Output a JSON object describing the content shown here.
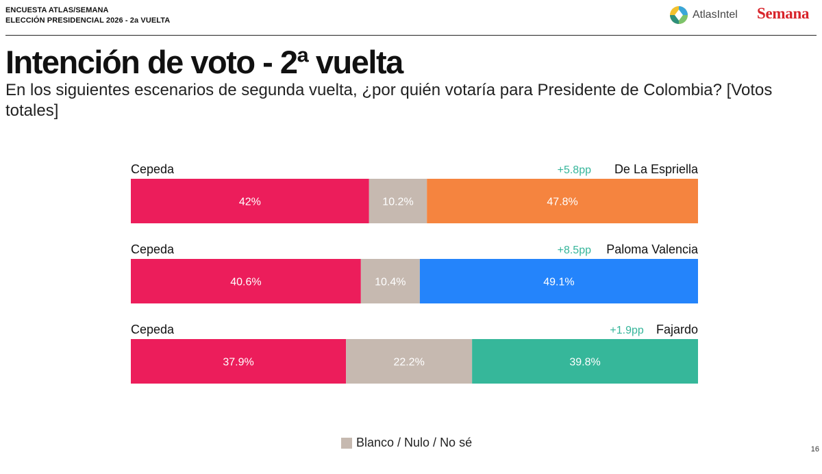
{
  "header": {
    "survey_line1": "ENCUESTA ATLAS/SEMANA",
    "survey_line2": "ELECCIÓN PRESIDENCIAL 2026 - 2a VUELTA",
    "brand_atlas": "AtlasIntel",
    "brand_semana": "Semana"
  },
  "title": "Intención de voto - 2ª vuelta",
  "subtitle": "En los siguientes escenarios de segunda vuelta, ¿por quién votaría para Presidente de Colombia? [Votos totales]",
  "legend": {
    "label": "Blanco / Nulo / No sé",
    "color": "#c6b9b0"
  },
  "page_number": "16",
  "colors": {
    "left_candidate": "#ec1d5b",
    "blank": "#c6b9b0",
    "margin_text": "#35b59a",
    "label_text": "#111111",
    "value_text": "#ffffff"
  },
  "chart_data": {
    "type": "bar",
    "orientation": "horizontal-stacked-100",
    "xlim": [
      0,
      100
    ],
    "unit": "%",
    "categories": [
      "Cepeda vs De La Espriella",
      "Cepeda vs Paloma Valencia",
      "Cepeda vs Fajardo"
    ],
    "scenarios": [
      {
        "left_name": "Cepeda",
        "left_value": 42,
        "left_label": "42%",
        "blank_value": 10.2,
        "blank_label": "10.2%",
        "right_name": "De La Espriella",
        "right_value": 47.8,
        "right_label": "47.8%",
        "right_color": "#f5843f",
        "margin_label": "+5.8pp"
      },
      {
        "left_name": "Cepeda",
        "left_value": 40.6,
        "left_label": "40.6%",
        "blank_value": 10.4,
        "blank_label": "10.4%",
        "right_name": "Paloma Valencia",
        "right_value": 49.1,
        "right_label": "49.1%",
        "right_color": "#2484fb",
        "margin_label": "+8.5pp"
      },
      {
        "left_name": "Cepeda",
        "left_value": 37.9,
        "left_label": "37.9%",
        "blank_value": 22.2,
        "blank_label": "22.2%",
        "right_name": "Fajardo",
        "right_value": 39.8,
        "right_label": "39.8%",
        "right_color": "#36b79a",
        "margin_label": "+1.9pp"
      }
    ]
  }
}
